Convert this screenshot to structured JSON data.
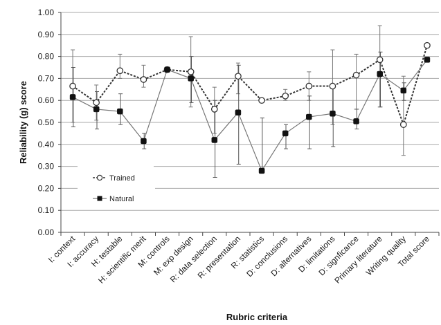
{
  "chart_data": {
    "type": "line",
    "xlabel": "Rubric criteria",
    "ylabel": "Reliability (g) score",
    "ylim": [
      0,
      1
    ],
    "yticks": [
      "0.00",
      "0.10",
      "0.20",
      "0.30",
      "0.40",
      "0.50",
      "0.60",
      "0.70",
      "0.80",
      "0.90",
      "1.00"
    ],
    "grid": true,
    "legend_placement": "bottom-left",
    "categories": [
      "I: context",
      "I: accuracy",
      "H: testable",
      "H: scientific merit",
      "M: controls",
      "M: exp design",
      "R: data selection",
      "R: presentation",
      "R: statistics",
      "D: conclusions",
      "D: alternatives",
      "D: limitations",
      "D: signficance",
      "Primary literature",
      "Writing quality",
      "Total score"
    ],
    "series": [
      {
        "name": "Trained",
        "marker": "open-circle",
        "line_style": "dashed",
        "values": [
          0.665,
          0.59,
          0.735,
          0.695,
          0.74,
          0.73,
          0.56,
          0.71,
          0.6,
          0.62,
          0.665,
          0.665,
          0.715,
          0.785,
          0.49,
          0.85
        ],
        "err_high": [
          0.83,
          0.67,
          0.81,
          0.76,
          null,
          0.89,
          0.66,
          0.77,
          null,
          0.65,
          0.73,
          0.83,
          0.81,
          0.94,
          0.71,
          null
        ],
        "err_low": [
          0.5,
          0.51,
          0.7,
          0.66,
          null,
          0.57,
          0.45,
          0.63,
          null,
          0.6,
          0.6,
          0.49,
          0.56,
          0.57,
          0.35,
          null
        ]
      },
      {
        "name": "Natural",
        "marker": "filled-square",
        "line_style": "solid",
        "values": [
          0.615,
          0.56,
          0.55,
          0.415,
          0.74,
          0.7,
          0.42,
          0.545,
          0.28,
          0.45,
          0.525,
          0.54,
          0.505,
          0.72,
          0.645,
          0.785
        ],
        "err_high": [
          0.75,
          0.64,
          0.63,
          0.45,
          null,
          0.8,
          0.6,
          0.76,
          0.52,
          0.49,
          0.62,
          0.66,
          0.56,
          0.82,
          0.68,
          null
        ],
        "err_low": [
          0.48,
          0.47,
          0.49,
          0.38,
          null,
          0.59,
          0.25,
          0.31,
          0.27,
          0.38,
          0.38,
          0.39,
          0.47,
          0.57,
          0.6,
          null
        ]
      }
    ]
  }
}
